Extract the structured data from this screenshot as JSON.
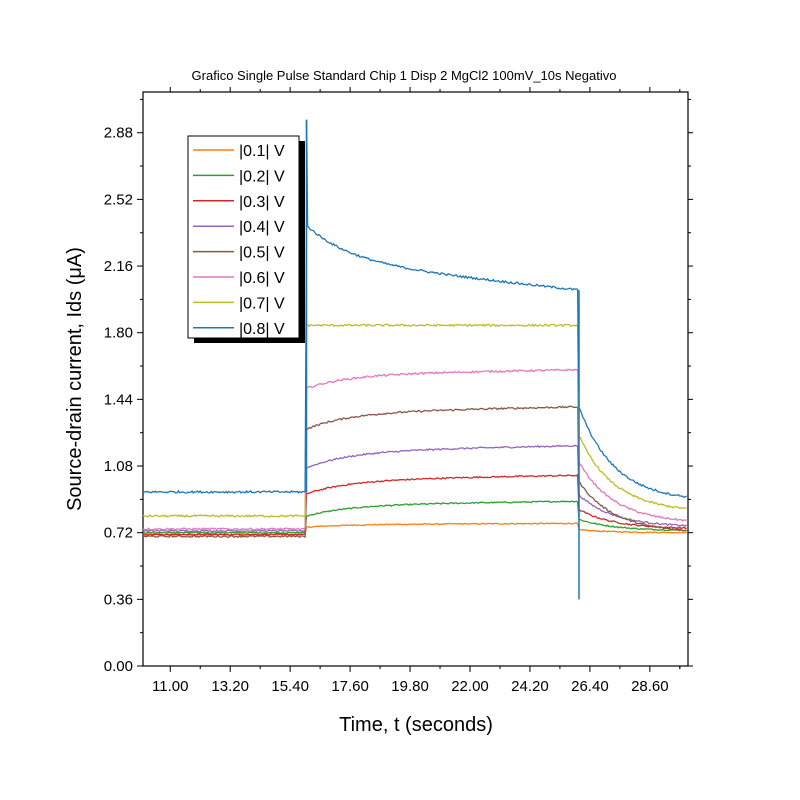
{
  "chart_data": {
    "type": "line",
    "title": "Grafico Single Pulse Standard Chip 1 Disp 2 MgCl2 100mV_10s Negativo",
    "xlabel": "Time, t (seconds)",
    "ylabel": "Source-drain current, Ids (μA)",
    "xlim": [
      10.0,
      30.0
    ],
    "ylim": [
      0.0,
      3.1
    ],
    "xticks": [
      11.0,
      13.2,
      15.4,
      17.6,
      19.8,
      22.0,
      24.2,
      26.4,
      28.6
    ],
    "xtick_labels": [
      "11.00",
      "13.20",
      "15.40",
      "17.60",
      "19.80",
      "22.00",
      "24.20",
      "26.40",
      "28.60"
    ],
    "yticks": [
      0.0,
      0.36,
      0.72,
      1.08,
      1.44,
      1.8,
      2.16,
      2.52,
      2.88
    ],
    "ytick_labels": [
      "0.00",
      "0.36",
      "0.72",
      "1.08",
      "1.44",
      "1.80",
      "2.16",
      "2.52",
      "2.88"
    ],
    "grid": false,
    "legend_position": "top-left",
    "pulse": {
      "on": 16.0,
      "off": 26.0
    },
    "series": [
      {
        "name": "|0.1| V",
        "color": "#ff7f0e",
        "baseline": 0.71,
        "rise_start": 0.75,
        "plateau_end": 0.77,
        "decay_end": 0.72,
        "spike_top": null,
        "spike_bottom": null
      },
      {
        "name": "|0.2| V",
        "color": "#2ca02c",
        "baseline": 0.72,
        "rise_start": 0.81,
        "plateau_end": 0.89,
        "decay_end": 0.73,
        "spike_top": null,
        "spike_bottom": null
      },
      {
        "name": "|0.3| V",
        "color": "#d62728",
        "baseline": 0.71,
        "rise_start": 0.93,
        "plateau_end": 1.03,
        "decay_end": 0.74,
        "spike_top": null,
        "spike_bottom": null
      },
      {
        "name": "|0.4| V",
        "color": "#9467bd",
        "baseline": 0.73,
        "rise_start": 1.07,
        "plateau_end": 1.19,
        "decay_end": 0.75,
        "spike_top": null,
        "spike_bottom": null
      },
      {
        "name": "|0.5| V",
        "color": "#8c564b",
        "baseline": 0.7,
        "rise_start": 1.28,
        "plateau_end": 1.4,
        "decay_end": 0.72,
        "spike_top": null,
        "spike_bottom": null
      },
      {
        "name": "|0.6| V",
        "color": "#e377c2",
        "baseline": 0.74,
        "rise_start": 1.5,
        "plateau_end": 1.6,
        "decay_end": 0.77,
        "spike_top": null,
        "spike_bottom": null
      },
      {
        "name": "|0.7| V",
        "color": "#bcbd22",
        "baseline": 0.81,
        "rise_start": 1.84,
        "plateau_end": 1.84,
        "decay_end": 0.83,
        "spike_top": null,
        "spike_bottom": null
      },
      {
        "name": "|0.8| V",
        "color": "#1f77b4",
        "baseline": 0.94,
        "rise_start": 2.38,
        "plateau_end": 2.03,
        "decay_end": 0.89,
        "spike_top": 2.95,
        "spike_bottom": 0.36
      }
    ]
  }
}
